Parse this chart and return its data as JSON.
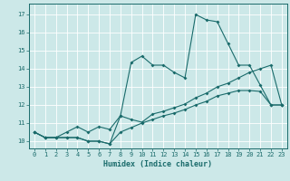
{
  "xlabel": "Humidex (Indice chaleur)",
  "background_color": "#cce8e8",
  "grid_color": "#ffffff",
  "line_color": "#1a6b6b",
  "xlim": [
    -0.5,
    23.5
  ],
  "ylim": [
    9.6,
    17.6
  ],
  "xticks": [
    0,
    1,
    2,
    3,
    4,
    5,
    6,
    7,
    8,
    9,
    10,
    11,
    12,
    13,
    14,
    15,
    16,
    17,
    18,
    19,
    20,
    21,
    22,
    23
  ],
  "yticks": [
    10,
    11,
    12,
    13,
    14,
    15,
    16,
    17
  ],
  "line1_y": [
    10.5,
    10.2,
    10.2,
    10.2,
    10.2,
    10.0,
    10.0,
    9.85,
    11.4,
    14.35,
    14.7,
    14.2,
    14.2,
    13.8,
    13.5,
    17.0,
    16.7,
    16.6,
    15.4,
    14.2,
    14.2,
    13.1,
    12.0,
    12.0
  ],
  "line2_y": [
    10.5,
    10.2,
    10.2,
    10.5,
    10.8,
    10.5,
    10.8,
    10.65,
    11.4,
    11.2,
    11.05,
    11.5,
    11.65,
    11.85,
    12.05,
    12.4,
    12.65,
    13.0,
    13.2,
    13.5,
    13.8,
    14.0,
    14.2,
    12.0
  ],
  "line3_y": [
    10.5,
    10.2,
    10.2,
    10.2,
    10.2,
    10.0,
    10.0,
    9.85,
    10.5,
    10.75,
    11.0,
    11.2,
    11.4,
    11.55,
    11.75,
    12.0,
    12.2,
    12.5,
    12.65,
    12.8,
    12.8,
    12.75,
    12.0,
    12.0
  ]
}
